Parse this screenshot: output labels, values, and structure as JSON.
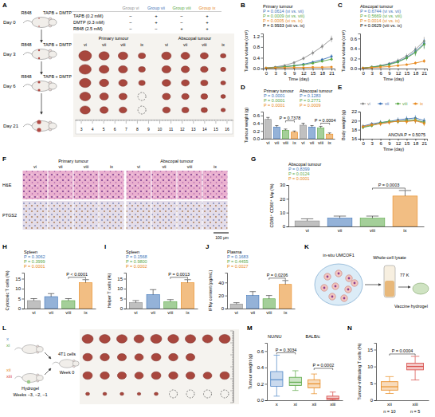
{
  "chart_data": [
    {
      "panel": "B",
      "type": "line",
      "title": "Primary tumour",
      "xlabel": "Time (day)",
      "ylabel": "Tumour volume (cm³)",
      "marker": "circle",
      "x": [
        0,
        3,
        6,
        9,
        12,
        15,
        18,
        21
      ],
      "xlim": [
        -1,
        22
      ],
      "xticks": [
        0,
        3,
        6,
        9,
        12,
        15,
        18,
        21
      ],
      "ylim": [
        0,
        1.3
      ],
      "yticks": [
        {
          "value": 0,
          "label": "0.0"
        },
        0.4,
        0.8,
        1.2
      ],
      "series": [
        {
          "color": "#8c8c8c",
          "values": [
            0.02,
            0.06,
            0.12,
            0.22,
            0.38,
            0.58,
            0.82,
            1.1
          ],
          "errors": [
            0.01,
            0.02,
            0.03,
            0.05,
            0.07,
            0.09,
            0.1,
            0.12
          ]
        },
        {
          "color": "#3d73b8",
          "values": [
            0.02,
            0.04,
            0.07,
            0.11,
            0.16,
            0.24,
            0.33,
            0.45
          ],
          "errors": [
            0.01,
            0.01,
            0.02,
            0.03,
            0.04,
            0.05,
            0.06,
            0.08
          ]
        },
        {
          "color": "#5aa845",
          "values": [
            0.02,
            0.04,
            0.07,
            0.1,
            0.14,
            0.2,
            0.27,
            0.35
          ],
          "errors": [
            0.01,
            0.01,
            0.02,
            0.02,
            0.03,
            0.04,
            0.05,
            0.06
          ]
        },
        {
          "color": "#e8891d",
          "values": [
            0.02,
            0.03,
            0.03,
            0.04,
            0.04,
            0.05,
            0.05,
            0.06
          ],
          "errors": [
            0.01,
            0.01,
            0.01,
            0.01,
            0.01,
            0.02,
            0.02,
            0.02
          ]
        }
      ],
      "annotations": [
        {
          "text": "P = 0.0614 (vi vs. vii)",
          "color": "#3d73b8"
        },
        {
          "text": "P = 0.0009 (vi vs. viii)",
          "color": "#5aa845"
        },
        {
          "text": "P = 0.0005 (vi vs. ix)",
          "color": "#e8891d"
        },
        {
          "text": "P = 0.9933 (viii vs. ix)",
          "color": "#000000"
        }
      ]
    },
    {
      "panel": "C",
      "type": "line",
      "title": "Abscopal tumour",
      "xlabel": "Time (day)",
      "ylabel": "Tumour volume (cm³)",
      "marker": "circle",
      "x": [
        0,
        3,
        6,
        9,
        12,
        15,
        18,
        21
      ],
      "xlim": [
        -1,
        22
      ],
      "xticks": [
        0,
        3,
        6,
        9,
        12,
        15,
        18,
        21
      ],
      "ylim": [
        0,
        0.7
      ],
      "yticks": [
        {
          "value": 0,
          "label": "0.0"
        },
        0.2,
        0.4,
        0.6
      ],
      "series": [
        {
          "color": "#8c8c8c",
          "values": [
            0.01,
            0.03,
            0.06,
            0.1,
            0.16,
            0.25,
            0.38,
            0.55
          ],
          "errors": [
            0.005,
            0.01,
            0.02,
            0.03,
            0.04,
            0.05,
            0.06,
            0.08
          ]
        },
        {
          "color": "#3d73b8",
          "values": [
            0.01,
            0.03,
            0.05,
            0.09,
            0.14,
            0.22,
            0.34,
            0.5
          ],
          "errors": [
            0.005,
            0.01,
            0.02,
            0.03,
            0.04,
            0.05,
            0.07,
            0.09
          ]
        },
        {
          "color": "#5aa845",
          "values": [
            0.01,
            0.03,
            0.05,
            0.08,
            0.13,
            0.21,
            0.32,
            0.48
          ],
          "errors": [
            0.005,
            0.01,
            0.02,
            0.03,
            0.04,
            0.05,
            0.07,
            0.09
          ]
        },
        {
          "color": "#e8891d",
          "values": [
            0.01,
            0.02,
            0.03,
            0.04,
            0.06,
            0.08,
            0.11,
            0.15
          ],
          "errors": [
            0.005,
            0.005,
            0.01,
            0.01,
            0.02,
            0.02,
            0.03,
            0.04
          ]
        }
      ],
      "annotations": [
        {
          "text": "P = 0.6744 (vi vs. vii)",
          "color": "#3d73b8"
        },
        {
          "text": "P = 0.5669 (vi vs. viii)",
          "color": "#5aa845"
        },
        {
          "text": "P = 0.0014 (vi vs. ix)",
          "color": "#e8891d"
        },
        {
          "text": "P = 0.0629 (viii vs. ix)",
          "color": "#000000"
        }
      ]
    },
    {
      "panel": "D",
      "type": "bar",
      "ylabel": "Tumour weight (g)",
      "categories": [
        "vi",
        "vii",
        "viii",
        "ix",
        "vi",
        "vii",
        "viii",
        "ix"
      ],
      "values": [
        0.5,
        0.3,
        0.22,
        0.17,
        0.35,
        0.3,
        0.28,
        0.12
      ],
      "errors": [
        0.05,
        0.04,
        0.03,
        0.03,
        0.05,
        0.04,
        0.04,
        0.03
      ],
      "colors": [
        "#8c8c8c",
        "#3d73b8",
        "#5aa845",
        "#e8891d",
        "#8c8c8c",
        "#3d73b8",
        "#5aa845",
        "#e8891d"
      ],
      "ylim": [
        0,
        0.7
      ],
      "yticks": [
        {
          "value": 0,
          "label": "0.0"
        },
        0.2,
        0.4,
        0.6
      ],
      "groups": [
        "Primary tumour",
        "Abscopal tumour"
      ],
      "annotations": [
        {
          "text": "P = 0.0001",
          "color": "#3d73b8"
        },
        {
          "text": "P = 0.0001",
          "color": "#5aa845"
        },
        {
          "text": "P = 0.0001",
          "color": "#e8891d"
        },
        {
          "text": "P = 0.1283",
          "color": "#3d73b8"
        },
        {
          "text": "P = 0.2771",
          "color": "#5aa845"
        },
        {
          "text": "P = 0.0009",
          "color": "#e8891d"
        }
      ],
      "brackets": [
        {
          "between": [
            2,
            3
          ],
          "text": "P = 0.7378"
        },
        {
          "between": [
            6,
            7
          ],
          "text": "P = 0.0004"
        }
      ]
    },
    {
      "panel": "E",
      "type": "line",
      "xlabel": "Time (day)",
      "ylabel": "Body weight (g)",
      "marker": "circle",
      "legend": "top",
      "x": [
        0,
        3,
        6,
        9,
        12,
        15,
        18,
        21
      ],
      "xlim": [
        -1,
        22
      ],
      "xticks": [
        0,
        3,
        6,
        9,
        12,
        15,
        18,
        21
      ],
      "ylim": [
        16,
        22
      ],
      "yticks": [
        16,
        18,
        20,
        22
      ],
      "series": [
        {
          "name": "vi",
          "color": "#8c8c8c",
          "values": [
            18.6,
            19.0,
            19.4,
            19.7,
            19.9,
            20.1,
            20.0,
            19.7
          ],
          "errors": [
            0.4,
            0.4,
            0.5,
            0.5,
            0.5,
            0.6,
            0.6,
            0.6
          ]
        },
        {
          "name": "vii",
          "color": "#3d73b8",
          "values": [
            18.8,
            19.3,
            19.6,
            19.8,
            20.2,
            20.4,
            20.6,
            20.0
          ],
          "errors": [
            0.4,
            0.4,
            0.5,
            0.5,
            0.5,
            0.6,
            0.6,
            0.6
          ]
        },
        {
          "name": "viii",
          "color": "#5aa845",
          "values": [
            18.5,
            18.9,
            19.5,
            19.9,
            19.8,
            20.0,
            20.2,
            19.6
          ],
          "errors": [
            0.4,
            0.4,
            0.5,
            0.5,
            0.5,
            0.6,
            0.6,
            0.6
          ]
        },
        {
          "name": "ix",
          "color": "#e8891d",
          "values": [
            18.7,
            19.1,
            19.3,
            19.6,
            19.9,
            19.8,
            20.0,
            19.4
          ],
          "errors": [
            0.4,
            0.4,
            0.5,
            0.5,
            0.5,
            0.6,
            0.6,
            0.6
          ]
        }
      ],
      "annotations": [
        {
          "text": "ANOVA P = 0.5075",
          "color": "#000000"
        }
      ]
    },
    {
      "panel": "G",
      "type": "bar",
      "title": "Abscopal tumour",
      "ylabel": "CD86⁺ CD80⁺ Mφ (%)",
      "categories": [
        "vi",
        "vii",
        "viii",
        "ix"
      ],
      "values": [
        4,
        6,
        6,
        22
      ],
      "errors": [
        1.5,
        1.5,
        1.5,
        4
      ],
      "colors": [
        "#8c8c8c",
        "#3d73b8",
        "#5aa845",
        "#e8891d"
      ],
      "ylim": [
        0,
        30
      ],
      "yticks": [
        0,
        10,
        20,
        30
      ],
      "annotations": [
        {
          "text": "P = 0.8399",
          "color": "#3d73b8"
        },
        {
          "text": "P = 0.0124",
          "color": "#5aa845"
        },
        {
          "text": "P = 0.0001",
          "color": "#e8891d"
        }
      ],
      "brackets": [
        {
          "between": [
            2,
            3
          ],
          "text": "P = 0.0003"
        }
      ]
    },
    {
      "panel": "H",
      "type": "bar",
      "title": "Spleen",
      "ylabel": "Cytotoxic T cells (%)",
      "categories": [
        "vi",
        "vii",
        "viii",
        "ix"
      ],
      "values": [
        4,
        6,
        4,
        13
      ],
      "errors": [
        1,
        1.5,
        1,
        1.5
      ],
      "colors": [
        "#8c8c8c",
        "#3d73b8",
        "#5aa845",
        "#e8891d"
      ],
      "ylim": [
        0,
        18
      ],
      "yticks": [
        0,
        5,
        10,
        15
      ],
      "annotations": [
        {
          "text": "P = 0.3062",
          "color": "#3d73b8"
        },
        {
          "text": "P = 0.3999",
          "color": "#5aa845"
        },
        {
          "text": "P = 0.0001",
          "color": "#e8891d"
        }
      ],
      "brackets": [
        {
          "between": [
            2,
            3
          ],
          "text": "P < 0.0001"
        }
      ]
    },
    {
      "panel": "I",
      "type": "bar",
      "title": "Spleen",
      "ylabel": "Helper T cells (%)",
      "categories": [
        "vi",
        "vii",
        "viii",
        "ix"
      ],
      "values": [
        3,
        7,
        3.5,
        13
      ],
      "errors": [
        1,
        2.5,
        1,
        1.5
      ],
      "colors": [
        "#8c8c8c",
        "#3d73b8",
        "#5aa845",
        "#e8891d"
      ],
      "ylim": [
        0,
        18
      ],
      "yticks": [
        0,
        5,
        10,
        15
      ],
      "annotations": [
        {
          "text": "P = 0.1568",
          "color": "#3d73b8"
        },
        {
          "text": "P = 0.9800",
          "color": "#5aa845"
        },
        {
          "text": "P = 0.0002",
          "color": "#e8891d"
        }
      ],
      "brackets": [
        {
          "between": [
            2,
            3
          ],
          "text": "P = 0.0013"
        }
      ]
    },
    {
      "panel": "J",
      "type": "bar",
      "title": "Plasma",
      "ylabel": "IFNγ content (pg/mL)",
      "categories": [
        "vi",
        "vii",
        "viii",
        "ix"
      ],
      "values": [
        7,
        20,
        15,
        37
      ],
      "errors": [
        2,
        6,
        5,
        6
      ],
      "colors": [
        "#8c8c8c",
        "#3d73b8",
        "#5aa845",
        "#e8891d"
      ],
      "ylim": [
        0,
        55
      ],
      "yticks": [
        0,
        20,
        40
      ],
      "annotations": [
        {
          "text": "P = 0.1683",
          "color": "#3d73b8"
        },
        {
          "text": "P = 0.4455",
          "color": "#5aa845"
        },
        {
          "text": "P = 0.0027",
          "color": "#e8891d"
        }
      ],
      "brackets": [
        {
          "between": [
            2,
            3
          ],
          "text": "P = 0.0206"
        }
      ]
    },
    {
      "panel": "M",
      "type": "box",
      "ylabel": "Tumour weight (g)",
      "categories": [
        "x",
        "xi",
        "xii",
        "xiii"
      ],
      "colors": [
        "#4f86c6",
        "#5aa845",
        "#e8891d",
        "#d64541"
      ],
      "groups": [
        "NU/NU",
        "BALB/c"
      ],
      "boxes": [
        {
          "min": 0.05,
          "q1": 0.17,
          "median": 0.25,
          "q3": 0.35,
          "max": 0.55
        },
        {
          "min": 0.12,
          "q1": 0.18,
          "median": 0.22,
          "q3": 0.28,
          "max": 0.36
        },
        {
          "min": 0.08,
          "q1": 0.15,
          "median": 0.2,
          "q3": 0.25,
          "max": 0.32
        },
        {
          "min": 0,
          "q1": 0.01,
          "median": 0.02,
          "q3": 0.05,
          "max": 0.1
        }
      ],
      "ylim": [
        0,
        0.7
      ],
      "yticks": [
        {
          "value": 0,
          "label": "0.0"
        },
        0.2,
        0.4,
        0.6
      ],
      "brackets": [
        {
          "between": [
            0,
            1
          ],
          "text": "P = 0.3034"
        },
        {
          "between": [
            2,
            3
          ],
          "text": "P = 0.0002"
        }
      ]
    },
    {
      "panel": "N",
      "type": "box",
      "ylabel": "Tumour-infiltrating T cells (%)",
      "categories": [
        "xii",
        "xiii"
      ],
      "colors": [
        "#e8891d",
        "#d64541"
      ],
      "boxes": [
        {
          "min": 2,
          "q1": 3,
          "median": 4,
          "q3": 5.5,
          "max": 7
        },
        {
          "min": 6,
          "q1": 9,
          "median": 10,
          "q3": 11,
          "max": 13
        }
      ],
      "ylim": [
        0,
        17
      ],
      "yticks": [
        0,
        5,
        10,
        15
      ],
      "category_notes": [
        "n = 10",
        "n = 5"
      ],
      "brackets": [
        {
          "between": [
            0,
            1
          ],
          "text": "P = 0.0004"
        }
      ]
    }
  ],
  "figure": {
    "A": {
      "panel": "A",
      "days": [
        "Day 0",
        "Day 3",
        "Day 6",
        "Day 21"
      ],
      "injections": [
        "R848",
        "TAPB + DMTP"
      ],
      "table": {
        "groups": [
          {
            "name": "Group vi",
            "color": "#8c8c8c"
          },
          {
            "name": "Group vii",
            "color": "#3d73b8"
          },
          {
            "name": "Group viii",
            "color": "#5aa845"
          },
          {
            "name": "Group ix",
            "color": "#e8891d"
          }
        ],
        "rows": [
          {
            "label": "TAPB (0.2 mM)",
            "cells": [
              "−",
              "+",
              "−",
              "+"
            ]
          },
          {
            "label": "DMTP (0.3 mM)",
            "cells": [
              "−",
              "+",
              "−",
              "+"
            ]
          },
          {
            "label": "R848 (2.5 mM)",
            "cells": [
              "−",
              "−",
              "+",
              "+"
            ]
          }
        ]
      },
      "photos": {
        "blocks": [
          "Primary tumour",
          "Abscopal tumour"
        ],
        "groups": [
          "vi",
          "vii",
          "viii",
          "ix"
        ],
        "ruler": [
          3,
          4,
          5,
          6,
          7,
          8,
          9,
          10,
          11,
          12,
          13,
          14,
          15,
          16
        ]
      }
    },
    "F": {
      "panel": "F",
      "blocks": [
        "Primary tumour",
        "Abscopal tumour"
      ],
      "groups": [
        "vi",
        "vii",
        "viii",
        "ix"
      ],
      "stains": [
        "H&E",
        "PTGS2"
      ],
      "scale_bar": "100 µm"
    },
    "K": {
      "panel": "K",
      "source": "in-situ UMCOF1",
      "lysate": "Whole-cell lysate",
      "temperature": "77 K",
      "product": "Vaccine hydrogel"
    },
    "L": {
      "panel": "L",
      "groups": [
        {
          "name": "x",
          "color": "#4f86c6"
        },
        {
          "name": "xi",
          "color": "#5aa845"
        },
        {
          "name": "xii",
          "color": "#e8891d"
        },
        {
          "name": "xiii",
          "color": "#d64541"
        }
      ],
      "hydrogel": "Hydrogel",
      "inoculum": "4T1 cells",
      "prime_weeks": "Weeks −3, −2, −1",
      "challenge_week": "Week 0"
    }
  }
}
